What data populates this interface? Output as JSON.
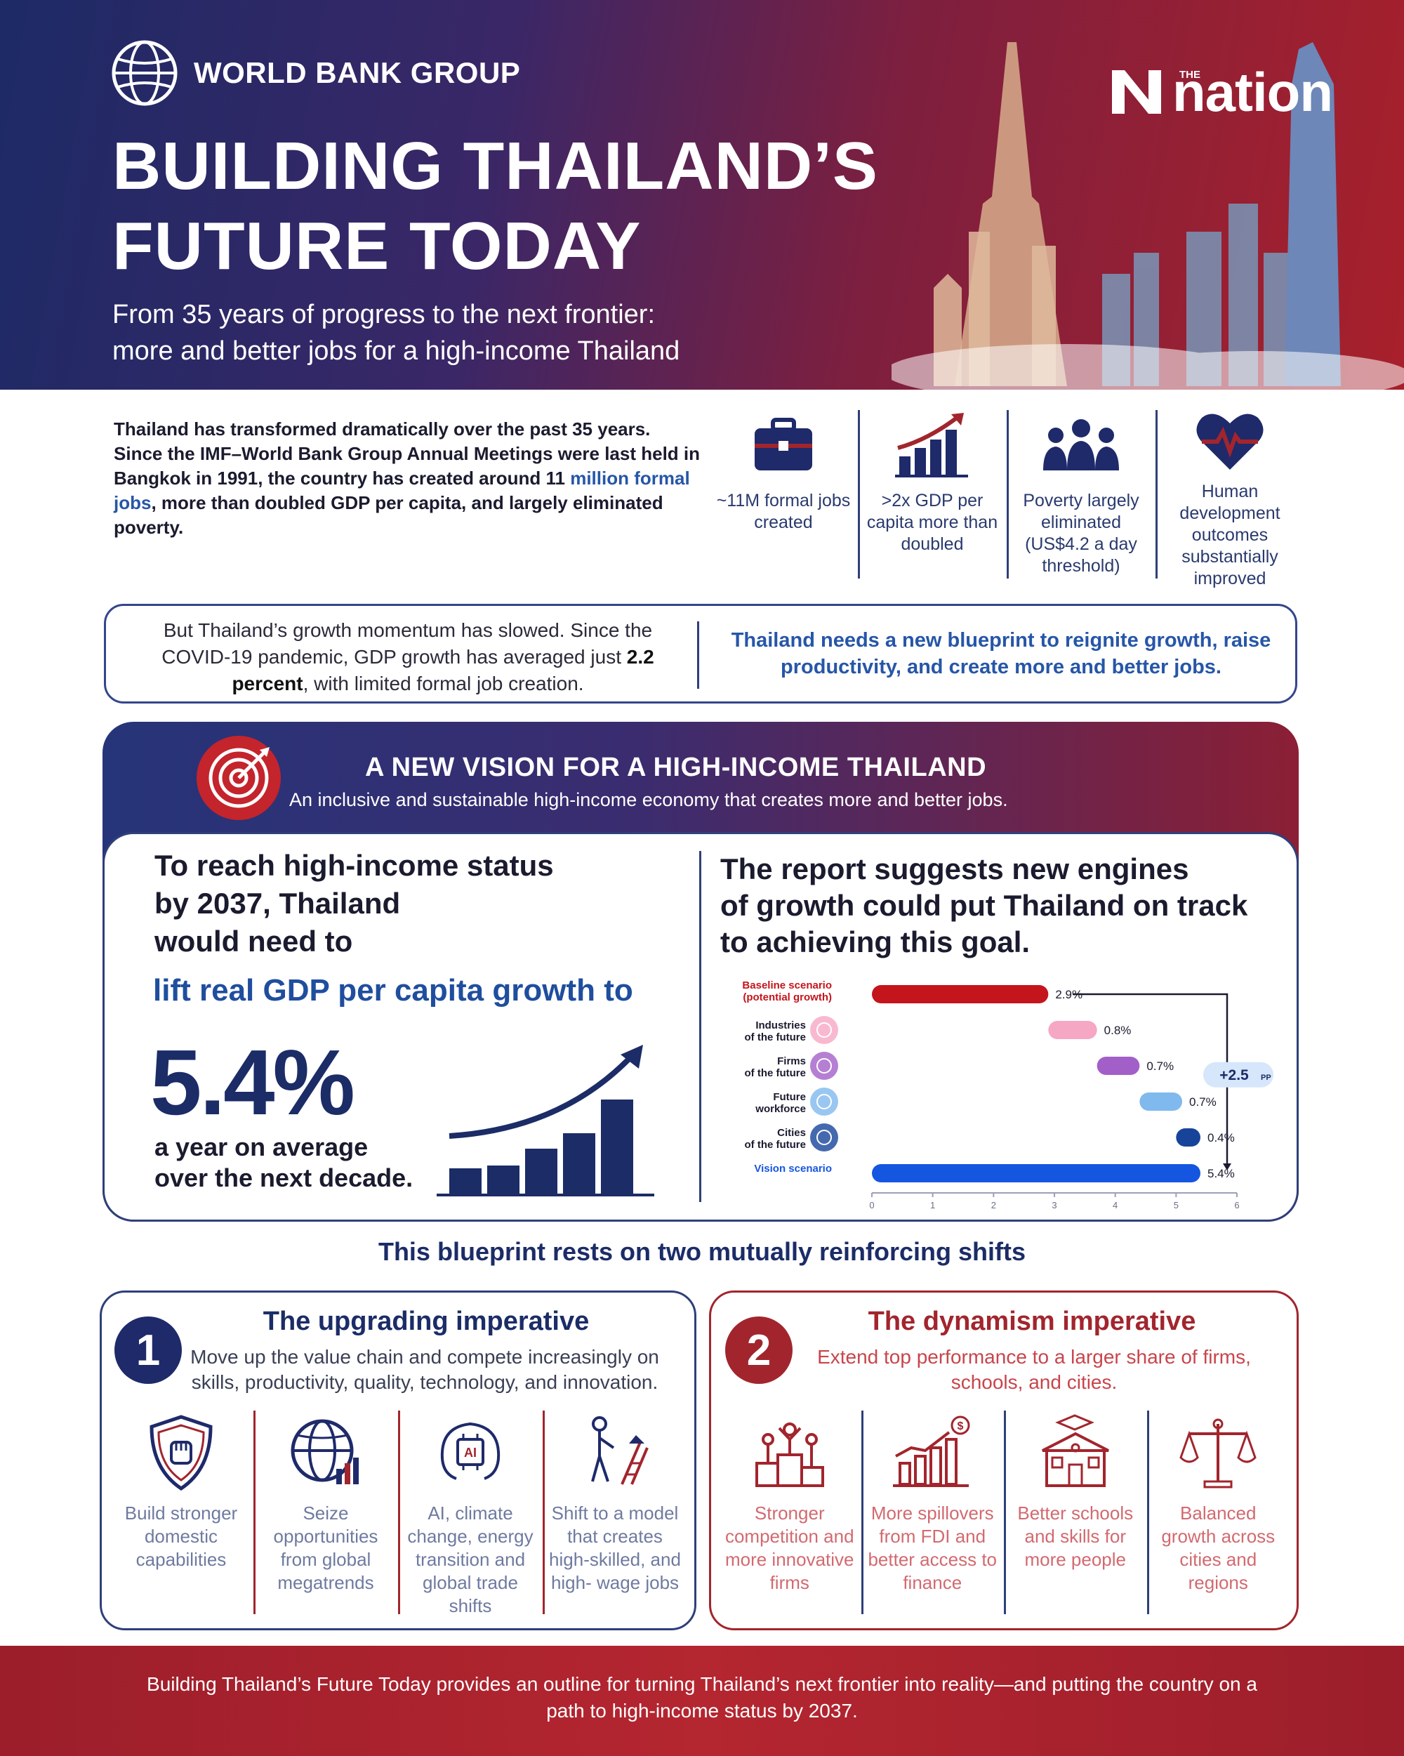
{
  "header": {
    "org_name": "WORLD BANK GROUP",
    "title_line1": "BUILDING THAILAND’S",
    "title_line2": "FUTURE TODAY",
    "subtitle_line1": "From 35 years of progress to the next frontier:",
    "subtitle_line2": "more and better jobs for a high-income Thailand",
    "nation_the": "THE",
    "nation_word": "nation"
  },
  "intro": {
    "text_before": "Thailand has transformed dramatically over the past 35 years. Since the IMF–World Bank Group Annual Meetings were last held in Bangkok in 1991, the country has created around 11 ",
    "highlight": "million formal jobs",
    "text_after": ", more than doubled GDP per capita, and largely eliminated poverty."
  },
  "stats": [
    {
      "icon": "briefcase-icon",
      "label": "~11M formal jobs created"
    },
    {
      "icon": "growth-bar-chart-icon",
      "label": ">2x GDP per capita more than doubled"
    },
    {
      "icon": "people-group-icon",
      "label": "Poverty largely eliminated (US$4.2 a day threshold)"
    },
    {
      "icon": "heart-pulse-icon",
      "label": "Human development outcomes substantially improved"
    }
  ],
  "growth": {
    "left_before": "But Thailand’s growth momentum has slowed. Since the COVID-19 pandemic, GDP growth has averaged just ",
    "left_bold": "2.2 percent",
    "left_after": ", with limited formal job creation.",
    "right": "Thailand needs a new blueprint to reignite growth, raise productivity, and create more and better jobs."
  },
  "vision": {
    "title": "A NEW VISION FOR A HIGH-INCOME THAILAND",
    "subtitle": "An inclusive and sustainable high-income economy that creates more and better jobs.",
    "left_line1": "To reach high-income status",
    "left_line2": "by 2037, Thailand",
    "left_line3": "would need to",
    "lift": "lift real GDP per capita growth to",
    "big_number": "5.4%",
    "note_line1": "a year on average",
    "note_line2": "over the next decade.",
    "right_line1": "The report suggests new engines",
    "right_line2": "of growth could put Thailand on track",
    "right_line3": "to achieving this goal."
  },
  "chart_data": {
    "type": "bar",
    "orientation": "horizontal",
    "categories": [
      "Baseline scenario (potential growth)",
      "Industries of the future",
      "Firms of the future",
      "Future workforce",
      "Cities of the future",
      "Vision scenario"
    ],
    "starts": [
      0,
      2.9,
      3.7,
      4.4,
      5.0,
      0
    ],
    "values": [
      2.9,
      0.8,
      0.7,
      0.7,
      0.4,
      5.4
    ],
    "value_labels": [
      "2.9%",
      "0.8%",
      "0.7%",
      "0.7%",
      "0.4%",
      "5.4%"
    ],
    "colors": [
      "#c4151c",
      "#f6a7c4",
      "#a35fc8",
      "#7fb9ee",
      "#17449a",
      "#1556e0"
    ],
    "x_ticks": [
      "0",
      "1",
      "2",
      "3",
      "4",
      "5",
      "6"
    ],
    "xlim": [
      0,
      6
    ],
    "annotation": "+2.5",
    "annotation_unit": "PP"
  },
  "shifts": {
    "title": "This blueprint rests on two mutually reinforcing shifts",
    "one": {
      "number": "1",
      "title": "The upgrading imperative",
      "desc": "Move up the value chain and compete increasingly on skills, productivity, quality, technology, and innovation.",
      "items": [
        {
          "icon": "shield-fist-icon",
          "label": "Build stronger domestic capabilities"
        },
        {
          "icon": "globe-chart-icon",
          "label": "Seize opportunities from global megatrends"
        },
        {
          "icon": "ai-chip-icon",
          "label": "AI, climate change, energy transition and global trade shifts"
        },
        {
          "icon": "worker-ladder-icon",
          "label": "Shift to a model that creates high-skilled, and high- wage jobs"
        }
      ]
    },
    "two": {
      "number": "2",
      "title": "The dynamism imperative",
      "desc": "Extend top performance to a larger share of firms, schools, and cities.",
      "items": [
        {
          "icon": "podium-people-icon",
          "label": "Stronger competition and more innovative firms"
        },
        {
          "icon": "dollar-chart-icon",
          "label": "More spillovers from FDI and better access to finance"
        },
        {
          "icon": "school-building-icon",
          "label": "Better schools and skills for more people"
        },
        {
          "icon": "balance-scale-icon",
          "label": "Balanced growth across cities and regions"
        }
      ]
    }
  },
  "footer": {
    "text": "Building Thailand’s Future Today provides an outline for turning Thailand’s next frontier into reality—and putting the country on a path to high-income status by 2037."
  }
}
